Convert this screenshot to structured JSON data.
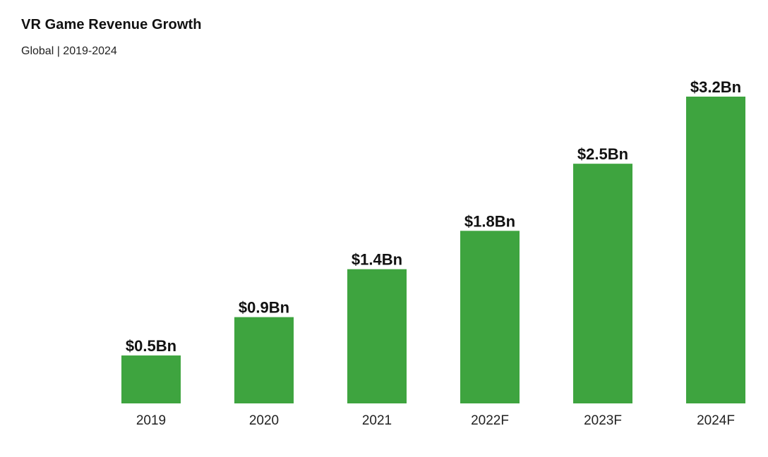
{
  "title": "VR Game Revenue Growth",
  "subtitle": "Global | 2019-2024",
  "colors": {
    "bar": "#3ea43f",
    "text": "#111111"
  },
  "chart_data": {
    "type": "bar",
    "title": "VR Game Revenue Growth",
    "subtitle": "Global | 2019-2024",
    "categories": [
      "2019",
      "2020",
      "2021",
      "2022F",
      "2023F",
      "2024F"
    ],
    "values": [
      0.5,
      0.9,
      1.4,
      1.8,
      2.5,
      3.2
    ],
    "data_labels": [
      "$0.5Bn",
      "$0.9Bn",
      "$1.4Bn",
      "$1.8Bn",
      "$2.5Bn",
      "$3.2Bn"
    ],
    "xlabel": "",
    "ylabel": "",
    "ylim": [
      0,
      3.2
    ],
    "grid": false,
    "legend": "none"
  }
}
